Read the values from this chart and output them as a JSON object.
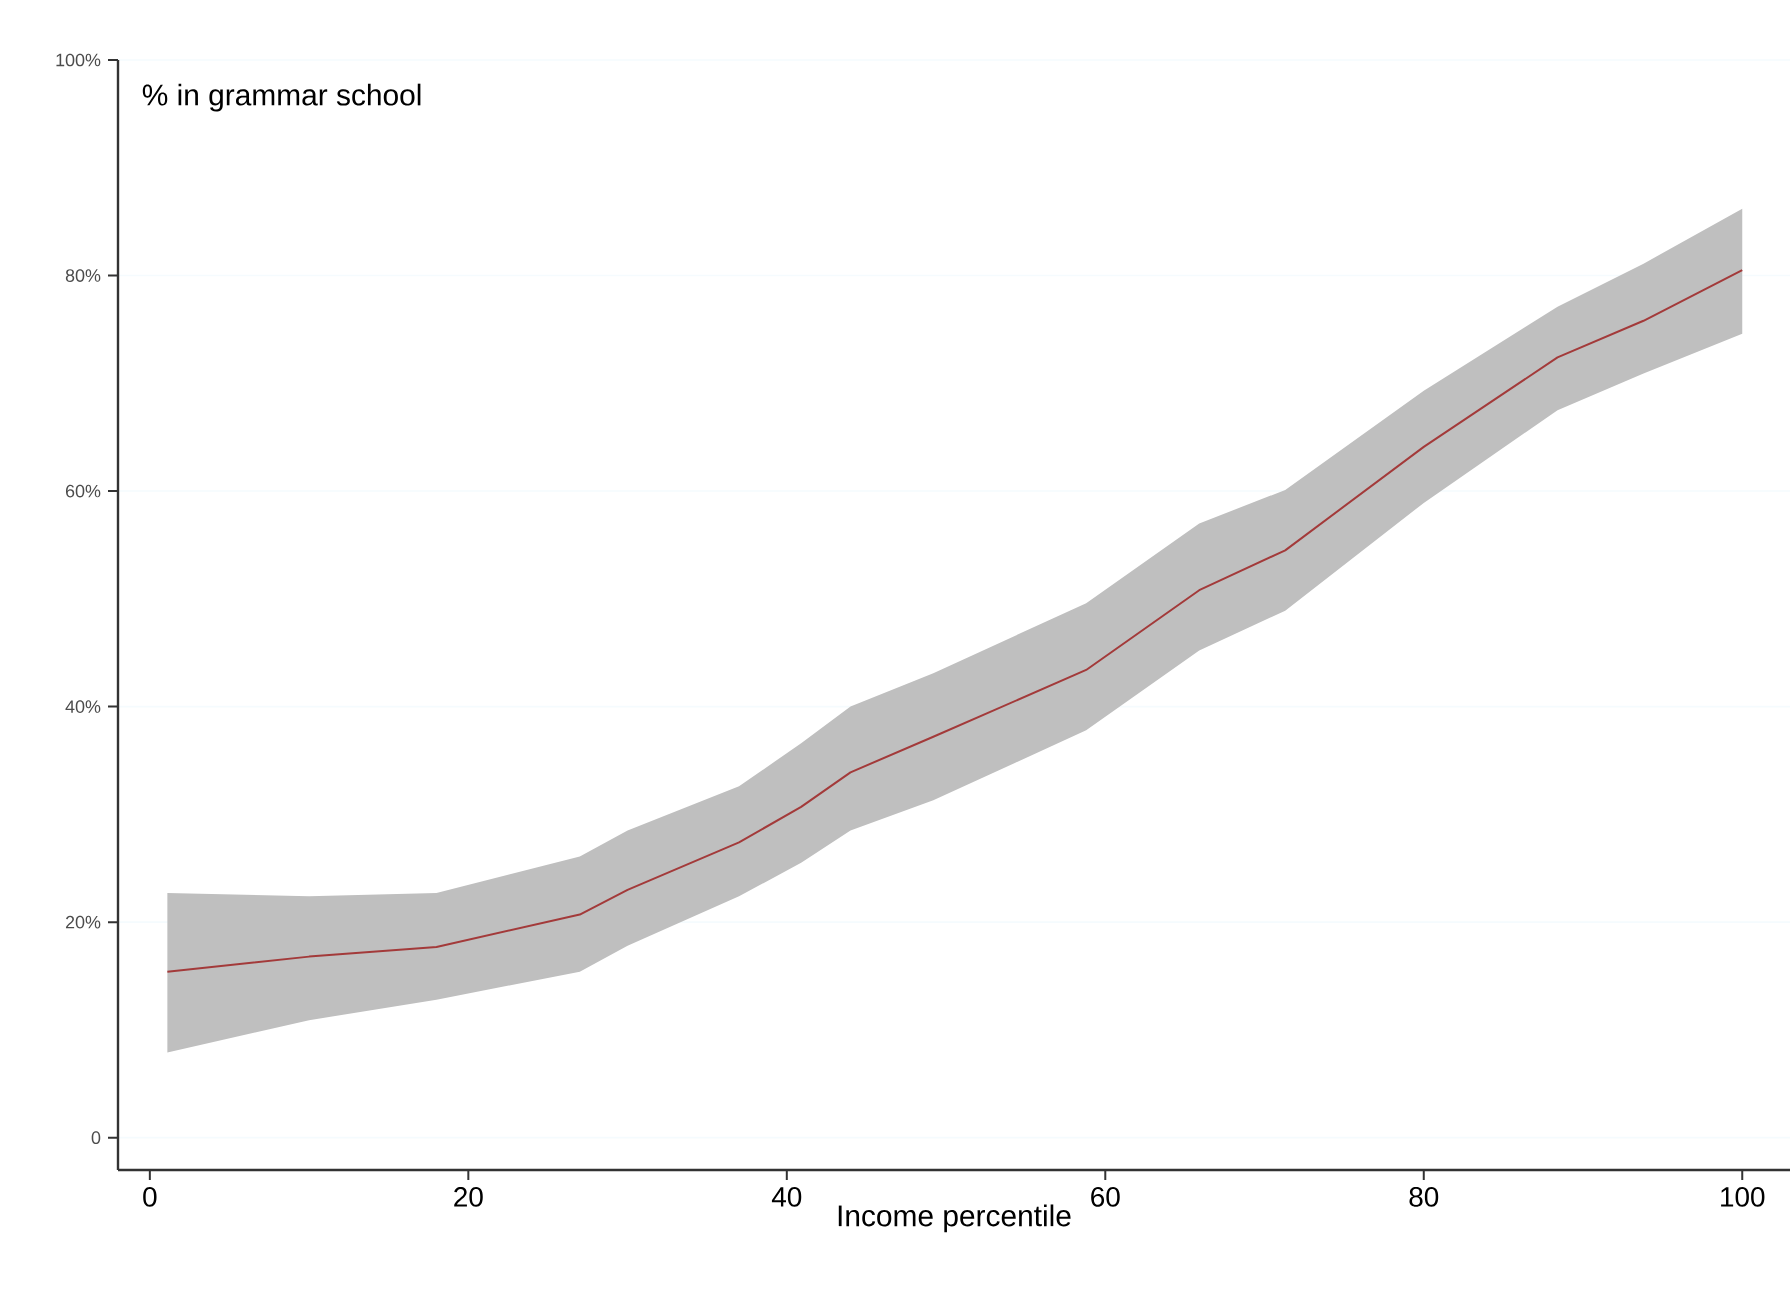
{
  "chart_data": {
    "type": "line",
    "xlabel": "Income percentile",
    "annotations": [
      "% in grammar school"
    ],
    "series": [
      {
        "color": "#a33a3a",
        "x": [
          1.1,
          10,
          18,
          27,
          30,
          37,
          40.9,
          44,
          49.2,
          58.8,
          65.9,
          71.3,
          80,
          88.4,
          93.8,
          100
        ],
        "values": [
          15.4,
          16.8,
          17.7,
          20.7,
          23.0,
          27.4,
          30.7,
          33.9,
          37.2,
          43.4,
          50.8,
          54.5,
          64.1,
          72.4,
          75.8,
          80.5
        ],
        "upper": [
          22.7,
          22.4,
          22.7,
          26.1,
          28.5,
          32.6,
          36.6,
          40.0,
          43.1,
          49.6,
          57.0,
          60.1,
          69.3,
          77.1,
          81.1,
          86.2
        ],
        "lower": [
          7.9,
          10.9,
          12.8,
          15.4,
          17.8,
          22.4,
          25.5,
          28.5,
          31.3,
          37.8,
          45.2,
          48.9,
          58.9,
          67.5,
          70.9,
          74.6
        ]
      }
    ],
    "xlim": [
      -2,
      103
    ],
    "ylim": [
      -3,
      100
    ],
    "xticks": [
      0,
      20,
      40,
      60,
      80,
      100
    ],
    "yticks": [
      0,
      {
        "value": 20,
        "label": "20%"
      },
      {
        "value": 40,
        "label": "40%"
      },
      {
        "value": 60,
        "label": "60%"
      },
      {
        "value": 80,
        "label": "80%"
      },
      {
        "value": 100,
        "label": "100%"
      }
    ],
    "grid": "y"
  }
}
